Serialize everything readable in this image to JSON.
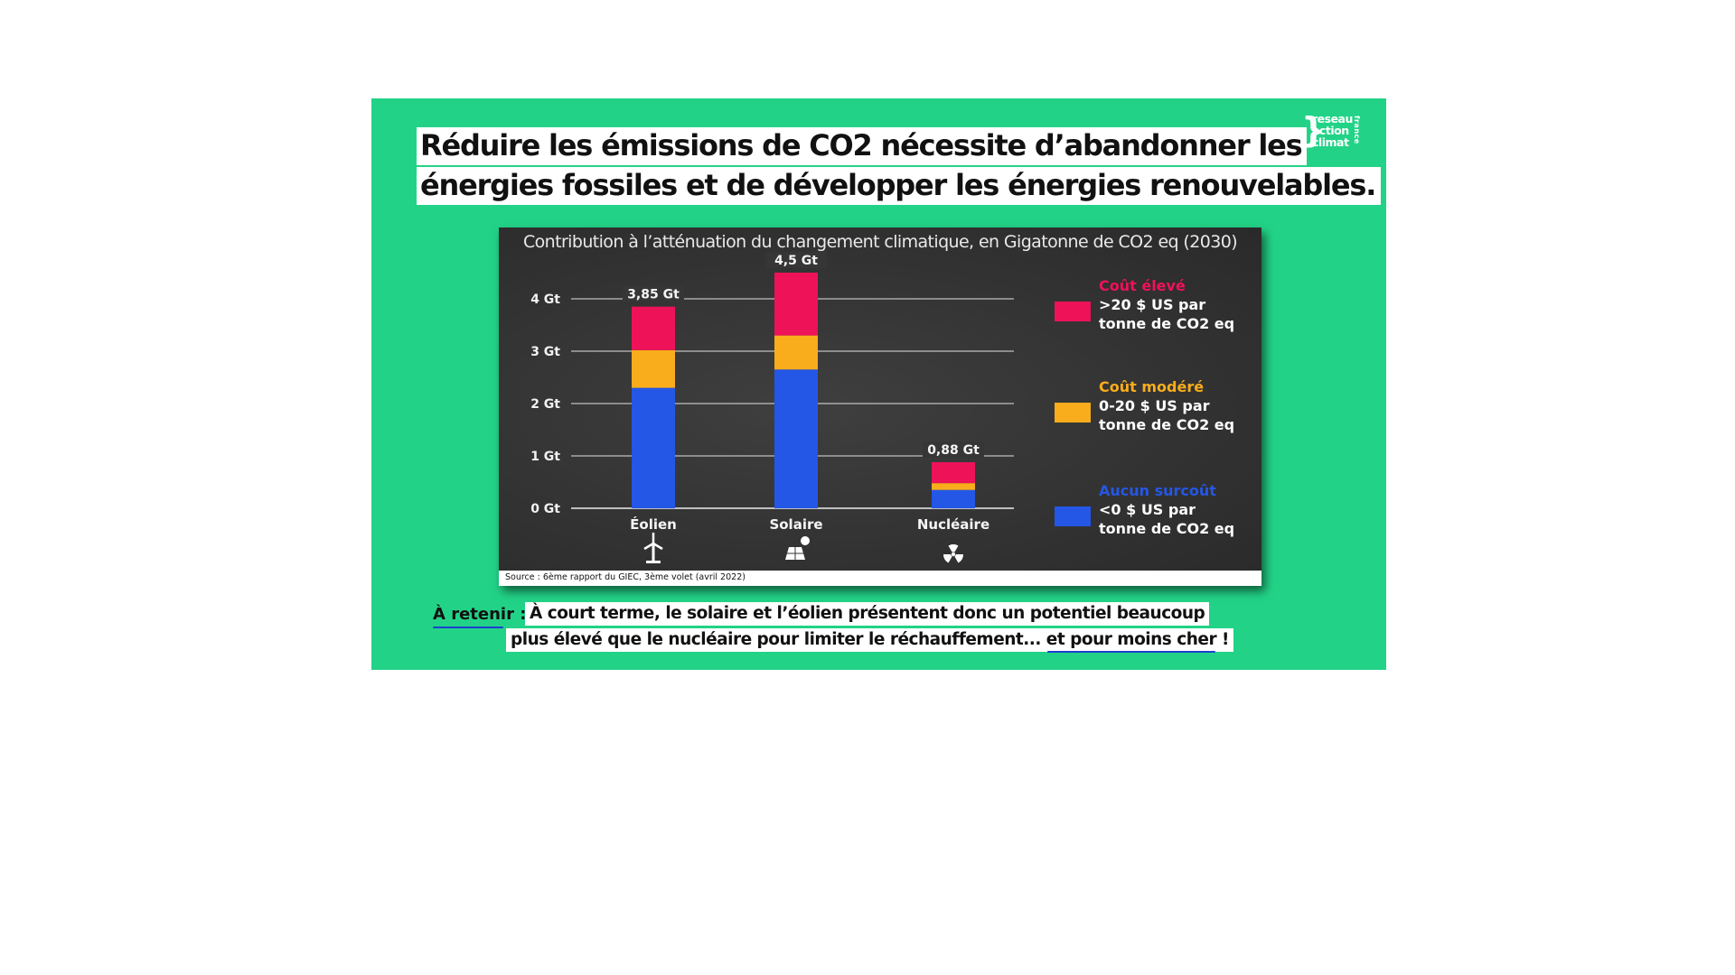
{
  "headline": {
    "line1": "Réduire les émissions de CO2 nécessite d’abandonner les",
    "line2": "énergies fossiles et de développer les énergies renouvelables."
  },
  "logo": {
    "line1": "reseau",
    "line2": "action",
    "line3": "climat",
    "side": "france"
  },
  "chart_data": {
    "type": "bar",
    "stacked": true,
    "title": "Contribution à l’atténuation du changement climatique, en Gigatonne de CO2 eq (2030)",
    "categories": [
      "Éolien",
      "Solaire",
      "Nucléaire"
    ],
    "series": [
      {
        "name": "Aucun surcoût",
        "color": "#2457e6",
        "values": [
          2.3,
          2.65,
          0.35
        ]
      },
      {
        "name": "Coût modéré",
        "color": "#f9ad1c",
        "values": [
          0.72,
          0.65,
          0.13
        ]
      },
      {
        "name": "Coût élevé",
        "color": "#ee1259",
        "values": [
          0.83,
          1.2,
          0.4
        ]
      }
    ],
    "totals": [
      3.85,
      4.5,
      0.88
    ],
    "total_labels": [
      "3,85 Gt",
      "4,5 Gt",
      "0,88 Gt"
    ],
    "yticks": [
      0,
      1,
      2,
      3,
      4
    ],
    "ytick_labels": [
      "0 Gt",
      "1 Gt",
      "2 Gt",
      "3 Gt",
      "4 Gt"
    ],
    "ylim": [
      0,
      4.5
    ],
    "grid": true,
    "category_icons": [
      "wind-turbine-icon",
      "solar-panel-icon",
      "radiation-icon"
    ],
    "legend": {
      "position": "right",
      "items": [
        {
          "title": "Coût élevé",
          "color": "#ee1259",
          "line1": ">20 $ US par",
          "line2": "tonne de CO2 eq"
        },
        {
          "title": "Coût modéré",
          "color": "#f9ad1c",
          "line1": "0-20 $ US par",
          "line2": "tonne de CO2 eq"
        },
        {
          "title": "Aucun surcoût",
          "color": "#2457e6",
          "line1": "<0 $ US par",
          "line2": "tonne de CO2 eq"
        }
      ]
    },
    "source": "Source : 6ème rapport du GIEC, 3ème volet (avril 2022)"
  },
  "takeaway": {
    "label": "À retenir :",
    "line1": "À court terme, le solaire et l’éolien présentent donc un potentiel beaucoup",
    "line2": "plus élevé que le nucléaire pour limiter le réchauffement... et pour moins cher !"
  },
  "colors": {
    "background": "#22d387",
    "board": "#333333",
    "accent": "#1f3fd0"
  }
}
